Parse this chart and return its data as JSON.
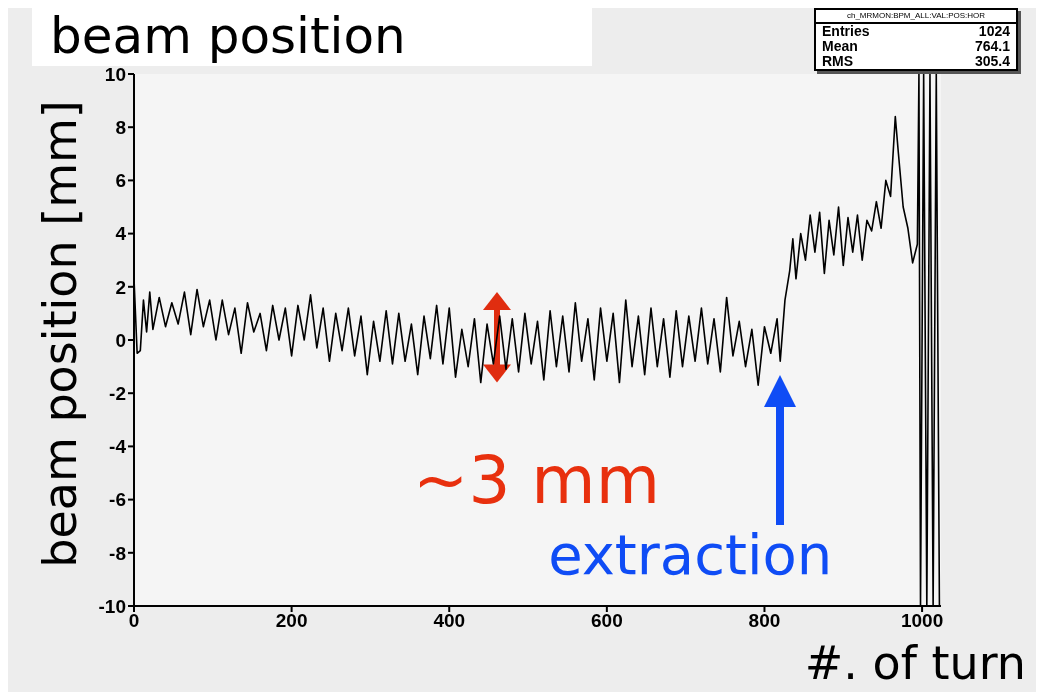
{
  "chart_data": {
    "type": "line",
    "title": "beam position",
    "xlabel": "#. of turn",
    "ylabel": "beam position [mm]",
    "xlim": [
      0,
      1024
    ],
    "xticks": [
      0,
      200,
      400,
      600,
      800,
      1000
    ],
    "ylim": [
      -10,
      10
    ],
    "yticks": [
      -10,
      -8,
      -6,
      -4,
      -2,
      0,
      2,
      4,
      6,
      8,
      10
    ],
    "grid": false,
    "legend": false,
    "marker": "none",
    "line_style": "solid",
    "annotations": [
      {
        "text": "~3 mm",
        "x": 460,
        "y": 0
      },
      {
        "text": "extraction",
        "x": 820,
        "y": -1
      },
      "ch_MRMON:BPM_ALL:VAL:POS:HOR",
      "Entries 1024",
      "Mean 764.1",
      "RMS 305.4"
    ],
    "series": [
      {
        "color": "#000000",
        "x": [
          0,
          4,
          8,
          12,
          16,
          20,
          24,
          32,
          40,
          48,
          56,
          64,
          72,
          80,
          88,
          96,
          104,
          112,
          120,
          128,
          136,
          144,
          152,
          160,
          168,
          176,
          184,
          192,
          200,
          208,
          216,
          224,
          232,
          240,
          248,
          256,
          264,
          272,
          280,
          288,
          296,
          304,
          312,
          320,
          328,
          336,
          344,
          352,
          360,
          368,
          376,
          384,
          392,
          400,
          408,
          416,
          424,
          432,
          440,
          448,
          456,
          464,
          472,
          480,
          488,
          496,
          504,
          512,
          520,
          528,
          536,
          544,
          552,
          560,
          568,
          576,
          584,
          592,
          600,
          608,
          616,
          624,
          632,
          640,
          648,
          656,
          664,
          672,
          680,
          688,
          696,
          704,
          712,
          720,
          728,
          736,
          744,
          752,
          760,
          768,
          776,
          784,
          792,
          800,
          808,
          816,
          820,
          826,
          832,
          836,
          840,
          846,
          852,
          858,
          864,
          870,
          876,
          882,
          888,
          894,
          900,
          906,
          912,
          918,
          924,
          930,
          936,
          942,
          948,
          954,
          960,
          966,
          970,
          976,
          982,
          988,
          994,
          996,
          998,
          1002,
          1006,
          1010,
          1014,
          1018,
          1022
        ],
        "values": [
          2.3,
          -0.5,
          -0.4,
          1.5,
          0.3,
          1.8,
          0.4,
          1.6,
          0.5,
          1.4,
          0.6,
          1.8,
          0.2,
          1.9,
          0.5,
          1.5,
          0.0,
          1.5,
          0.2,
          1.2,
          -0.5,
          1.4,
          0.3,
          1.0,
          -0.4,
          1.3,
          0.0,
          1.2,
          -0.6,
          1.3,
          0.0,
          1.7,
          -0.3,
          1.2,
          -0.8,
          1.0,
          -0.4,
          1.2,
          -0.6,
          0.9,
          -1.3,
          0.7,
          -0.8,
          1.1,
          -0.9,
          1.0,
          -0.8,
          0.6,
          -1.3,
          0.9,
          -0.7,
          1.3,
          -0.9,
          1.2,
          -1.4,
          0.4,
          -1.0,
          0.8,
          -1.6,
          0.6,
          -0.9,
          0.9,
          -1.1,
          0.8,
          -1.2,
          1.0,
          -0.9,
          0.7,
          -1.5,
          1.1,
          -1.0,
          0.9,
          -1.2,
          1.4,
          -0.8,
          0.8,
          -1.5,
          1.2,
          -0.8,
          1.0,
          -1.6,
          1.5,
          -1.0,
          0.9,
          -1.3,
          1.2,
          -1.0,
          0.8,
          -1.4,
          1.1,
          -1.0,
          0.9,
          -0.8,
          1.2,
          -0.9,
          0.8,
          -1.2,
          1.6,
          -0.6,
          0.7,
          -1.0,
          0.4,
          -1.7,
          0.5,
          -0.5,
          0.8,
          -0.8,
          1.5,
          2.6,
          3.8,
          2.3,
          4.0,
          3.0,
          4.7,
          3.3,
          4.8,
          2.5,
          4.5,
          3.2,
          5.0,
          2.8,
          4.6,
          3.3,
          4.7,
          3.0,
          4.5,
          4.1,
          5.2,
          4.2,
          6.0,
          5.4,
          8.4,
          7.0,
          5.0,
          4.2,
          2.9,
          3.6,
          10,
          -10,
          10,
          -10,
          10,
          -10,
          10,
          -10
        ]
      }
    ]
  }
}
